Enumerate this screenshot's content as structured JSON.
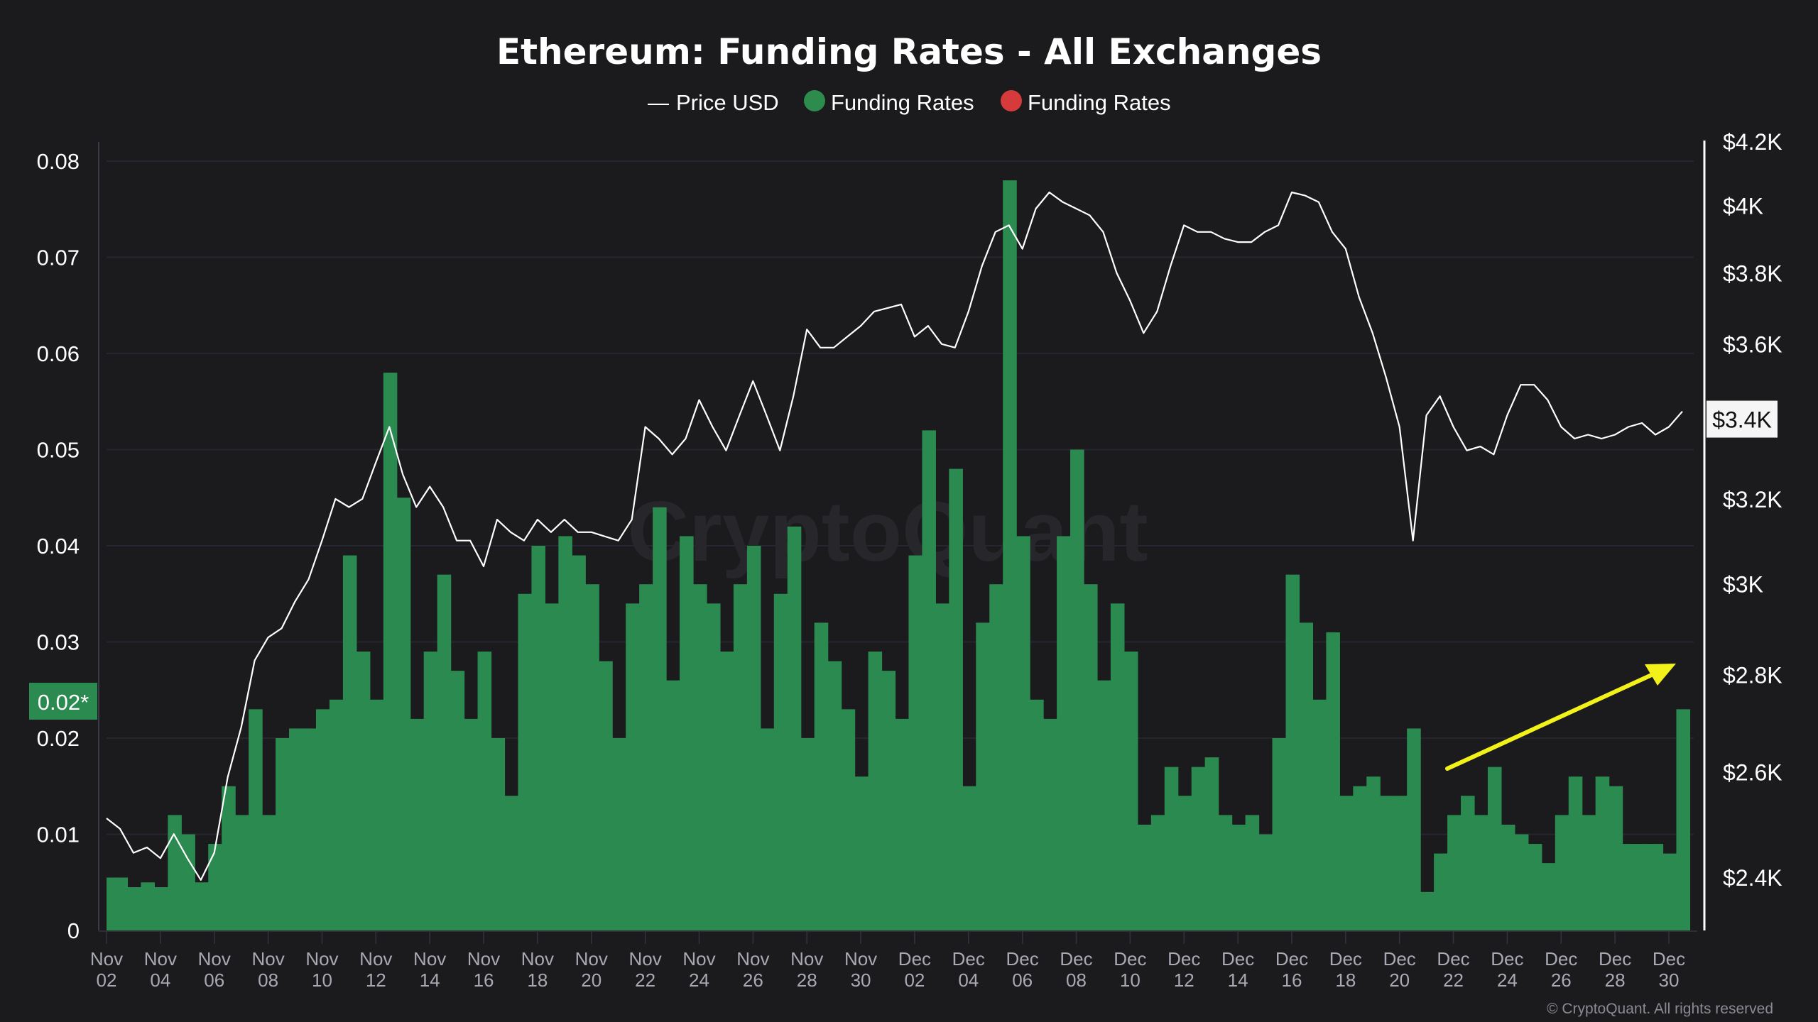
{
  "chart_data": {
    "type": "bar",
    "title": "Ethereum: Funding Rates - All Exchanges",
    "legend": [
      {
        "label": "Price USD",
        "kind": "line",
        "color": "#ffffff"
      },
      {
        "label": "Funding Rates",
        "kind": "dot",
        "color": "#2e8b4e"
      },
      {
        "label": "Funding Rates",
        "kind": "dot",
        "color": "#d63a3a"
      }
    ],
    "legend_placement": "top-center",
    "x_tick_labels": [
      [
        "Nov",
        "02"
      ],
      [
        "Nov",
        "04"
      ],
      [
        "Nov",
        "06"
      ],
      [
        "Nov",
        "08"
      ],
      [
        "Nov",
        "10"
      ],
      [
        "Nov",
        "12"
      ],
      [
        "Nov",
        "14"
      ],
      [
        "Nov",
        "16"
      ],
      [
        "Nov",
        "18"
      ],
      [
        "Nov",
        "20"
      ],
      [
        "Nov",
        "22"
      ],
      [
        "Nov",
        "24"
      ],
      [
        "Nov",
        "26"
      ],
      [
        "Nov",
        "28"
      ],
      [
        "Nov",
        "30"
      ],
      [
        "Dec",
        "02"
      ],
      [
        "Dec",
        "04"
      ],
      [
        "Dec",
        "06"
      ],
      [
        "Dec",
        "08"
      ],
      [
        "Dec",
        "10"
      ],
      [
        "Dec",
        "12"
      ],
      [
        "Dec",
        "14"
      ],
      [
        "Dec",
        "16"
      ],
      [
        "Dec",
        "18"
      ],
      [
        "Dec",
        "20"
      ],
      [
        "Dec",
        "22"
      ],
      [
        "Dec",
        "24"
      ],
      [
        "Dec",
        "26"
      ],
      [
        "Dec",
        "28"
      ],
      [
        "Dec",
        "30"
      ]
    ],
    "x_start": "Nov 02",
    "x_step_days": 0.5,
    "left_axis": {
      "label": "Funding Rates",
      "ylim": [
        0,
        0.08
      ],
      "ticks": [
        "0",
        "0.01",
        "0.02",
        "0.03",
        "0.04",
        "0.05",
        "0.06",
        "0.07",
        "0.08"
      ],
      "grid": true
    },
    "right_axis": {
      "label": "Price USD",
      "scale": "log",
      "ylim": [
        2400,
        4200
      ],
      "ticks": [
        {
          "label": "$4.2K",
          "value": 4200
        },
        {
          "label": "$4K",
          "value": 4000
        },
        {
          "label": "$3.8K",
          "value": 3800
        },
        {
          "label": "$3.6K",
          "value": 3600
        },
        {
          "label": "$3.2K",
          "value": 3200
        },
        {
          "label": "$3K",
          "value": 3000
        },
        {
          "label": "$2.8K",
          "value": 2800
        },
        {
          "label": "$2.6K",
          "value": 2600
        },
        {
          "label": "$2.4K",
          "value": 2400
        }
      ]
    },
    "current_value_markers": {
      "funding": "0.02*",
      "funding_value": 0.02,
      "price": "$3.4K",
      "price_value": 3400
    },
    "series": [
      {
        "name": "Funding Rates",
        "type": "bar",
        "color": "#2a8a50",
        "values": [
          0.0055,
          0.0055,
          0.0045,
          0.005,
          0.0045,
          0.012,
          0.01,
          0.005,
          0.009,
          0.015,
          0.012,
          0.023,
          0.012,
          0.02,
          0.021,
          0.021,
          0.023,
          0.024,
          0.039,
          0.029,
          0.024,
          0.058,
          0.045,
          0.022,
          0.029,
          0.037,
          0.027,
          0.022,
          0.029,
          0.02,
          0.014,
          0.035,
          0.04,
          0.034,
          0.041,
          0.039,
          0.036,
          0.028,
          0.02,
          0.034,
          0.036,
          0.044,
          0.026,
          0.041,
          0.036,
          0.034,
          0.029,
          0.036,
          0.04,
          0.021,
          0.035,
          0.042,
          0.02,
          0.032,
          0.028,
          0.023,
          0.016,
          0.029,
          0.027,
          0.022,
          0.039,
          0.052,
          0.034,
          0.048,
          0.015,
          0.032,
          0.036,
          0.078,
          0.041,
          0.024,
          0.022,
          0.041,
          0.05,
          0.036,
          0.026,
          0.034,
          0.029,
          0.011,
          0.012,
          0.017,
          0.014,
          0.017,
          0.018,
          0.012,
          0.011,
          0.012,
          0.01,
          0.02,
          0.037,
          0.032,
          0.024,
          0.031,
          0.014,
          0.015,
          0.016,
          0.014,
          0.014,
          0.021,
          0.004,
          0.008,
          0.012,
          0.014,
          0.012,
          0.017,
          0.011,
          0.01,
          0.009,
          0.007,
          0.012,
          0.016,
          0.012,
          0.016,
          0.015,
          0.009,
          0.009,
          0.009,
          0.008,
          0.023
        ]
      },
      {
        "name": "Price USD",
        "type": "line",
        "color": "#ffffff",
        "values": [
          2510,
          2490,
          2445,
          2455,
          2435,
          2480,
          2435,
          2395,
          2445,
          2590,
          2690,
          2830,
          2880,
          2900,
          2960,
          3010,
          3100,
          3200,
          3180,
          3200,
          3290,
          3380,
          3260,
          3180,
          3230,
          3180,
          3100,
          3100,
          3040,
          3150,
          3120,
          3100,
          3150,
          3120,
          3150,
          3120,
          3120,
          3110,
          3100,
          3150,
          3380,
          3350,
          3310,
          3350,
          3450,
          3380,
          3320,
          3410,
          3500,
          3410,
          3320,
          3460,
          3640,
          3590,
          3590,
          3620,
          3650,
          3690,
          3700,
          3710,
          3620,
          3650,
          3600,
          3590,
          3690,
          3820,
          3920,
          3940,
          3870,
          3990,
          4040,
          4010,
          3990,
          3970,
          3920,
          3800,
          3720,
          3630,
          3690,
          3820,
          3940,
          3920,
          3920,
          3900,
          3890,
          3890,
          3920,
          3940,
          4040,
          4030,
          4010,
          3920,
          3870,
          3730,
          3630,
          3510,
          3380,
          3100,
          3410,
          3460,
          3380,
          3320,
          3330,
          3310,
          3410,
          3490,
          3490,
          3450,
          3380,
          3350,
          3360,
          3350,
          3360,
          3380,
          3390,
          3360,
          3380,
          3420
        ]
      }
    ],
    "annotation": {
      "type": "arrow",
      "color": "#f2f21a",
      "meaning": "rising funding rates trend"
    },
    "watermark": "CryptoQuant",
    "copyright": "© CryptoQuant. All rights reserved"
  }
}
